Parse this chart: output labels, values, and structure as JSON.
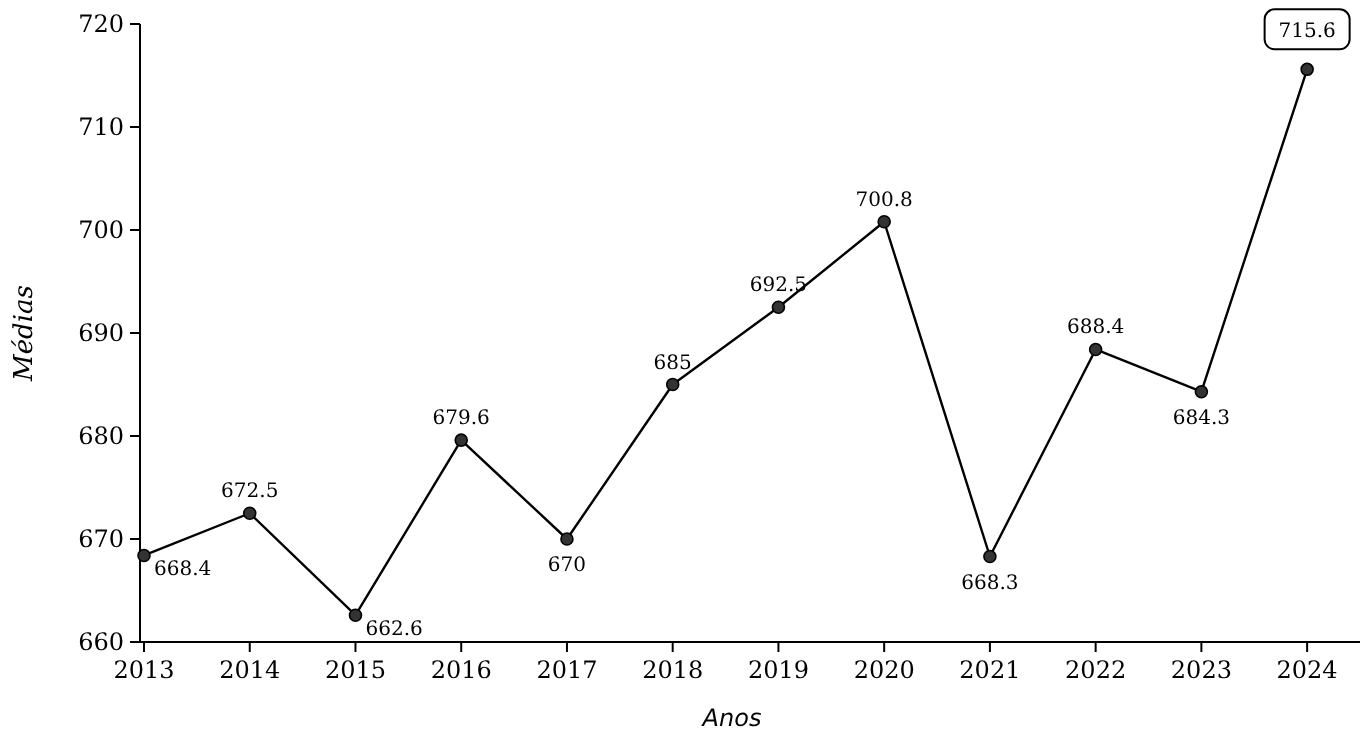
{
  "chart_data": {
    "type": "line",
    "xlabel": "Anos",
    "ylabel": "Médias",
    "x": [
      2013,
      2014,
      2015,
      2016,
      2017,
      2018,
      2019,
      2020,
      2021,
      2022,
      2023,
      2024
    ],
    "series": [
      {
        "color": "#000000",
        "values": [
          668.4,
          672.5,
          662.6,
          679.6,
          670,
          685,
          692.5,
          700.8,
          668.3,
          688.4,
          684.3,
          715.6
        ]
      }
    ],
    "xlim": [
      2013,
      2024.5
    ],
    "xticks": [
      2013,
      2014,
      2015,
      2016,
      2017,
      2018,
      2019,
      2020,
      2021,
      2022,
      2023,
      2024
    ],
    "ylim": [
      660,
      720
    ],
    "yticks": [
      660,
      670,
      680,
      690,
      700,
      710,
      720
    ],
    "marker": "circle",
    "line_style": "solid",
    "data_labels": true
  }
}
